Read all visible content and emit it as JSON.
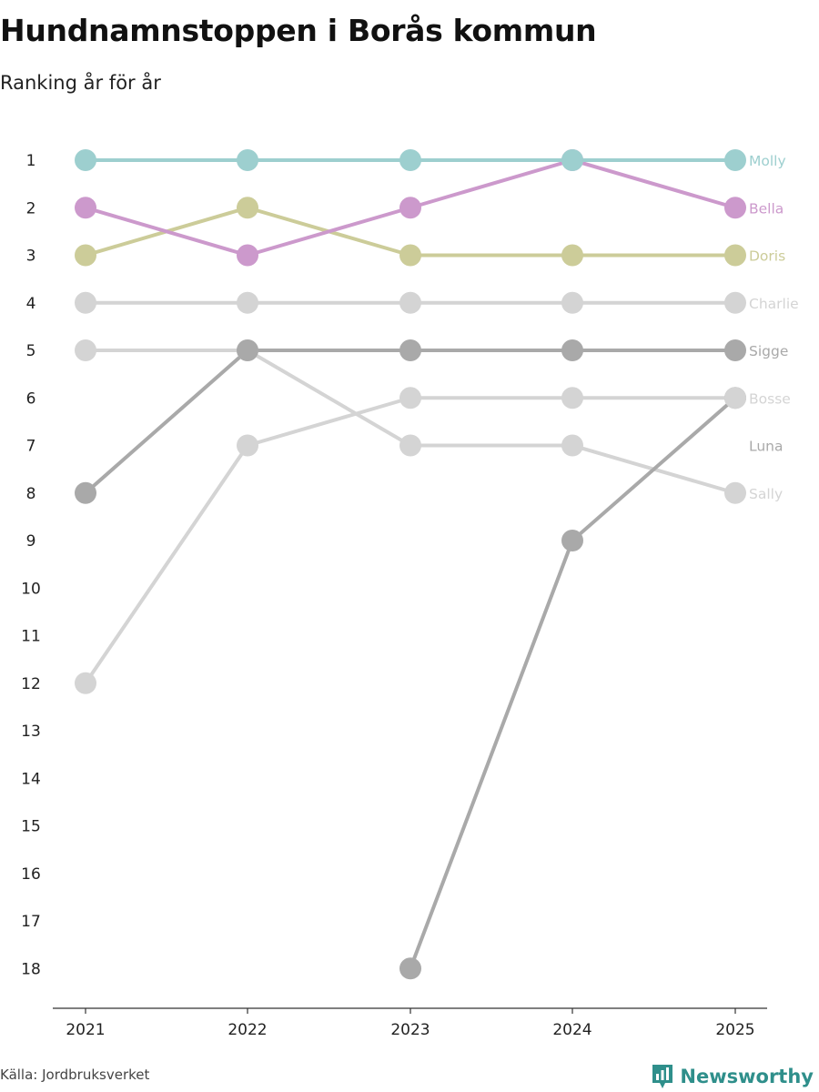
{
  "chart_data": {
    "type": "line",
    "title": "Hundnamnstoppen i Borås kommun",
    "subtitle": "Ranking år för år",
    "xlabel": "",
    "ylabel": "",
    "ylim": [
      1,
      18
    ],
    "y_inverted": true,
    "y_ticks": [
      "1",
      "2",
      "3",
      "4",
      "5",
      "6",
      "7",
      "8",
      "9",
      "10",
      "11",
      "12",
      "13",
      "14",
      "15",
      "16",
      "17",
      "18"
    ],
    "categories": [
      "2021",
      "2022",
      "2023",
      "2024",
      "2025"
    ],
    "series": [
      {
        "name": "Molly",
        "color": "#9dcfcf",
        "values": [
          1,
          1,
          1,
          1,
          1
        ]
      },
      {
        "name": "Bella",
        "color": "#cc99cc",
        "values": [
          2,
          3,
          2,
          1,
          2
        ]
      },
      {
        "name": "Doris",
        "color": "#cccc99",
        "values": [
          3,
          2,
          3,
          3,
          3
        ]
      },
      {
        "name": "Charlie",
        "color": "#d4d4d4",
        "values": [
          4,
          4,
          4,
          4,
          4
        ]
      },
      {
        "name": "Sigge",
        "color": "#a9a9a9",
        "values": [
          8,
          5,
          5,
          5,
          5
        ]
      },
      {
        "name": "Bosse",
        "color": "#d4d4d4",
        "values": [
          12,
          7,
          6,
          6,
          6
        ]
      },
      {
        "name": "Luna",
        "color": "#a9a9a9",
        "values": [
          null,
          null,
          18,
          9,
          6
        ]
      },
      {
        "name": "Sally",
        "color": "#d4d4d4",
        "values": [
          5,
          5,
          7,
          7,
          8
        ]
      }
    ],
    "end_labels": [
      {
        "name": "Molly",
        "rank": 1,
        "color": "#9dcfcf"
      },
      {
        "name": "Bella",
        "rank": 2,
        "color": "#cc99cc"
      },
      {
        "name": "Doris",
        "rank": 3,
        "color": "#cccc99"
      },
      {
        "name": "Charlie",
        "rank": 4,
        "color": "#d4d4d4"
      },
      {
        "name": "Sigge",
        "rank": 5,
        "color": "#a9a9a9"
      },
      {
        "name": "Bosse",
        "rank": 6,
        "color": "#d4d4d4"
      },
      {
        "name": "Luna",
        "rank": 7,
        "color": "#a9a9a9"
      },
      {
        "name": "Sally",
        "rank": 8,
        "color": "#d4d4d4"
      }
    ]
  },
  "footer": {
    "source": "Källa: Jordbruksverket",
    "brand": "Newsworthy"
  },
  "colors": {
    "axis": "#333333",
    "brand": "#2f8f8b"
  }
}
